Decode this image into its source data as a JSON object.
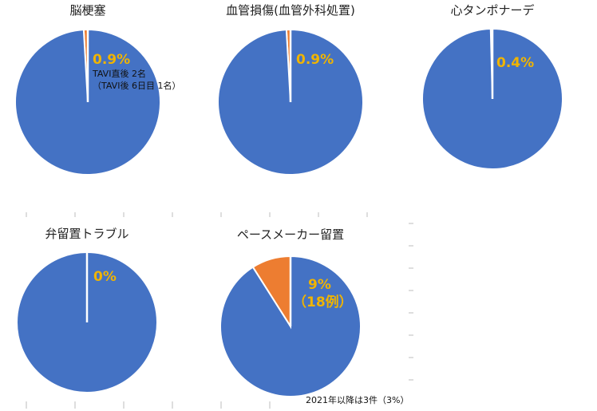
{
  "colors": {
    "blue": "#4472c4",
    "orange": "#ed7d31",
    "label": "#f0b400"
  },
  "chart_data": [
    {
      "type": "pie",
      "title": "脳梗塞",
      "values": [
        0.9,
        99.1
      ],
      "data_label": "0.9%",
      "notes": [
        "TAVI直後 2名",
        "（TAVI後 6日目 1名）"
      ]
    },
    {
      "type": "pie",
      "title": "血管損傷(血管外科処置)",
      "values": [
        0.9,
        99.1
      ],
      "data_label": "0.9%"
    },
    {
      "type": "pie",
      "title": "心タンポナーデ",
      "values": [
        0.4,
        99.6
      ],
      "data_label": "0.4%"
    },
    {
      "type": "pie",
      "title": "弁留置トラブル",
      "values": [
        0,
        100
      ],
      "data_label": "0%"
    },
    {
      "type": "pie",
      "title": "ペースメーカー留置",
      "values": [
        9,
        91
      ],
      "data_label": "9%",
      "data_label_2": "（18例）",
      "footnote": "2021年以降は3件（3%）"
    }
  ]
}
